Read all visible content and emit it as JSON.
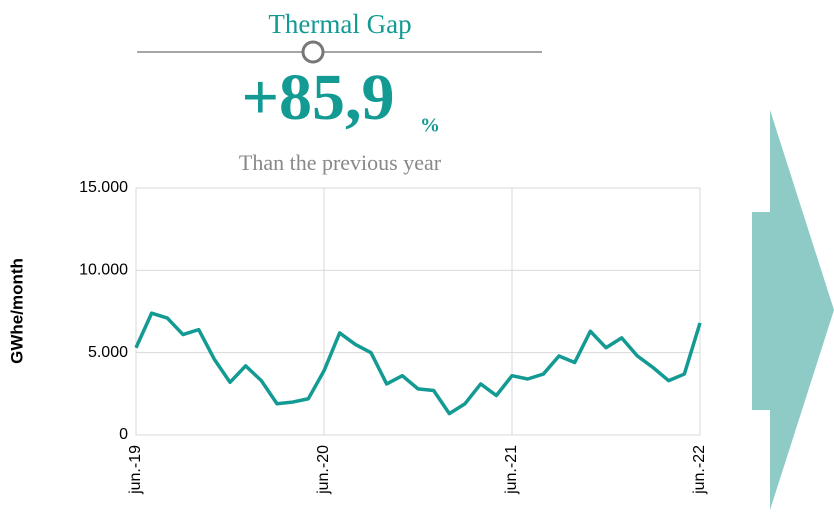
{
  "header": {
    "title": "Thermal Gap",
    "value": "+85,9",
    "unit": "%",
    "subtitle": "Than the previous year"
  },
  "chart_data": {
    "type": "line",
    "ylabel": "GWhe/month",
    "categories": [
      "jun.-19",
      null,
      null,
      null,
      null,
      null,
      null,
      null,
      null,
      null,
      null,
      null,
      "jun.-20",
      null,
      null,
      null,
      null,
      null,
      null,
      null,
      null,
      null,
      null,
      null,
      "jun.-21",
      null,
      null,
      null,
      null,
      null,
      null,
      null,
      null,
      null,
      null,
      null,
      "jun.-22"
    ],
    "series": [
      {
        "name": "Thermal Gap",
        "color": "#139a93",
        "values": [
          5300,
          7400,
          7100,
          6100,
          6400,
          4600,
          3200,
          4200,
          3300,
          1900,
          2000,
          2200,
          3900,
          6200,
          5500,
          5000,
          3100,
          3600,
          2800,
          2700,
          1300,
          1900,
          3100,
          2400,
          3600,
          3400,
          3700,
          4800,
          4400,
          6300,
          5300,
          5900,
          4800,
          4100,
          3300,
          3700,
          6800
        ]
      }
    ],
    "ylim": [
      0,
      15000
    ],
    "yticks": [
      0,
      {
        "value": 5000,
        "label": "5.000"
      },
      {
        "value": 10000,
        "label": "10.000"
      },
      {
        "value": 15000,
        "label": "15.000"
      }
    ],
    "grid": true
  }
}
